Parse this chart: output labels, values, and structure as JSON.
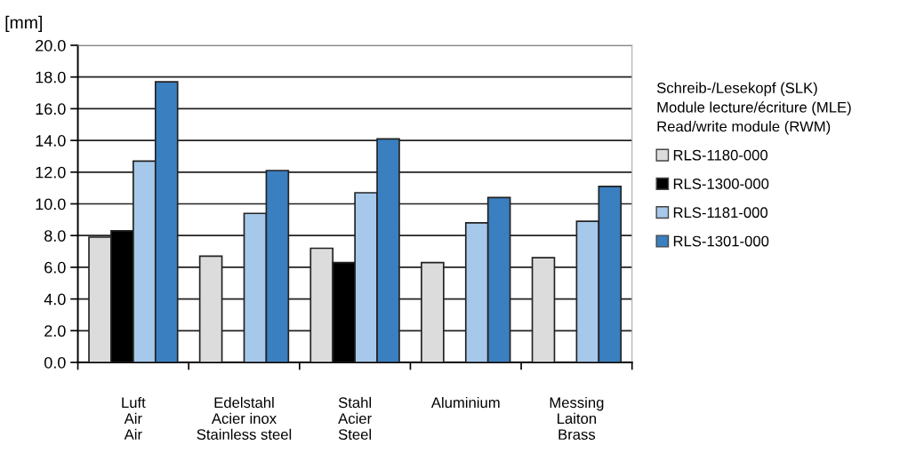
{
  "chart_data": {
    "type": "bar",
    "ylabel": "[mm]",
    "legend_title": "Schreib-/Lesekopf (SLK)\nModule lecture/écriture (MLE)\nRead/write module (RWM)",
    "categories": [
      "Luft\nAir\nAir",
      "Edelstahl\nAcier inox\nStainless steel",
      "Stahl\nAcier\nSteel",
      "Aluminium",
      "Messing\nLaiton\nBrass"
    ],
    "series": [
      {
        "name": "RLS-1180-000",
        "color": "#dcdcdc",
        "values": [
          7.9,
          6.7,
          7.2,
          6.3,
          6.6
        ]
      },
      {
        "name": "RLS-1300-000",
        "color": "#000000",
        "values": [
          8.3,
          null,
          6.3,
          null,
          null
        ]
      },
      {
        "name": "RLS-1181-000",
        "color": "#a6c8ea",
        "values": [
          12.7,
          9.4,
          10.7,
          8.8,
          8.9
        ]
      },
      {
        "name": "RLS-1301-000",
        "color": "#3a7fbf",
        "values": [
          17.7,
          12.1,
          14.1,
          10.4,
          11.1
        ]
      }
    ],
    "ylim": [
      0,
      20
    ],
    "yticks": [
      {
        "value": 0,
        "label": "0.0"
      },
      {
        "value": 2,
        "label": "2.0"
      },
      {
        "value": 4,
        "label": "4.0"
      },
      {
        "value": 6,
        "label": "6.0"
      },
      {
        "value": 8,
        "label": "8.0"
      },
      {
        "value": 10,
        "label": "10.0"
      },
      {
        "value": 12,
        "label": "12.0"
      },
      {
        "value": 14,
        "label": "14.0"
      },
      {
        "value": 16,
        "label": "16.0"
      },
      {
        "value": 18,
        "label": "18.0"
      },
      {
        "value": 20,
        "label": "20.0"
      }
    ],
    "grid": "y",
    "legend": "right"
  }
}
